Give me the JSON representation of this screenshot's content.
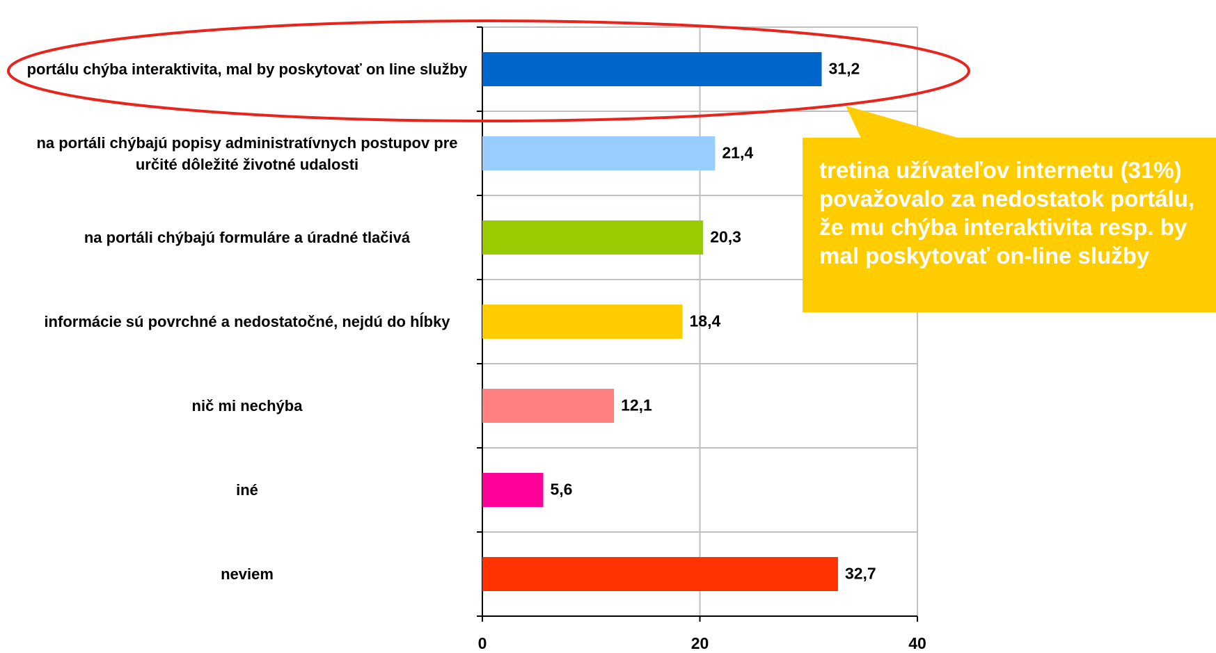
{
  "chart_data": {
    "type": "barh",
    "categories": [
      "portálu chýba interaktivita, mal by poskytovať on line služby",
      "na portáli chýbajú popisy administratívnych postupov pre určité dôležité životné udalosti",
      "na portáli chýbajú formuláre a úradné tlačivá",
      "informácie sú povrchné a nedostatočné, nejdú do hĺbky",
      "nič mi nechýba",
      "iné",
      "neviem"
    ],
    "values": [
      31.2,
      21.4,
      20.3,
      18.4,
      12.1,
      5.6,
      32.7
    ],
    "value_labels": [
      "31,2",
      "21,4",
      "20,3",
      "18,4",
      "12,1",
      "5,6",
      "32,7"
    ],
    "colors": [
      "#0066cc",
      "#99ccff",
      "#99cc00",
      "#ffcc00",
      "#ff8080",
      "#ff0099",
      "#ff3300"
    ],
    "xlim": [
      0,
      40
    ],
    "xticks": [
      0,
      20,
      40
    ],
    "grid": true,
    "annotation": "tretina užívateľov internetu (31%) považovalo za nedostatok portálu, že mu chýba interaktivita resp. by mal poskytovať on-line služby"
  }
}
